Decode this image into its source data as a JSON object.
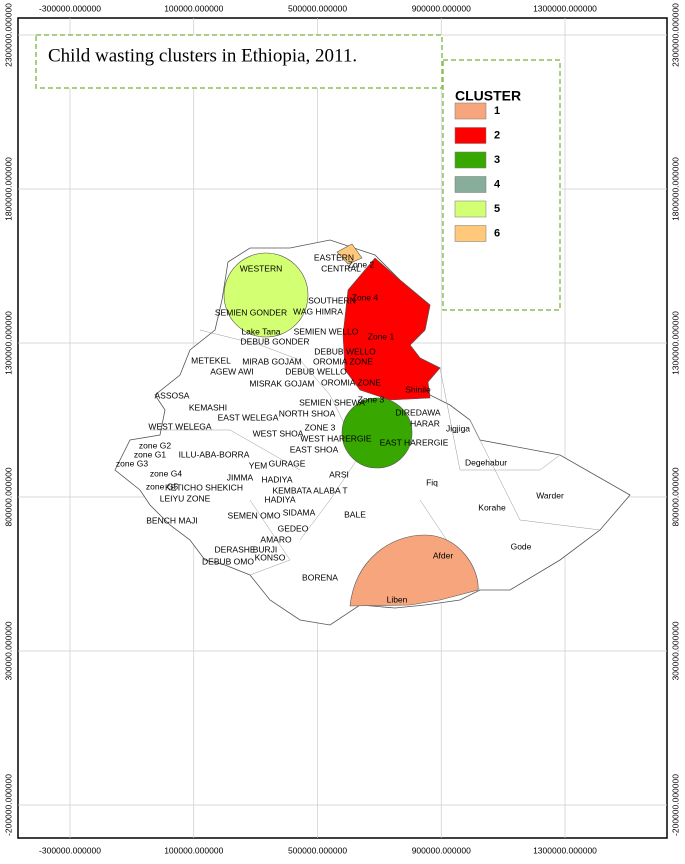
{
  "title": "Child wasting clusters in Ethiopia, 2011.",
  "legend": {
    "title": "CLUSTER",
    "items": [
      {
        "label": "1",
        "color": "#f7a57d"
      },
      {
        "label": "2",
        "color": "#ff0000"
      },
      {
        "label": "3",
        "color": "#38a800"
      },
      {
        "label": "4",
        "color": "#89ad9b"
      },
      {
        "label": "5",
        "color": "#d3ff73"
      },
      {
        "label": "6",
        "color": "#ffc87a"
      }
    ]
  },
  "axes": {
    "xticks": [
      {
        "value": -300000,
        "label": "-300000.000000"
      },
      {
        "value": 100000,
        "label": "100000.000000"
      },
      {
        "value": 500000,
        "label": "500000.000000"
      },
      {
        "value": 900000,
        "label": "900000.000000"
      },
      {
        "value": 1300000,
        "label": "1300000.000000"
      }
    ],
    "yticks": [
      {
        "value": 2300000,
        "label": "2300000.000000"
      },
      {
        "value": 1800000,
        "label": "1800000.000000"
      },
      {
        "value": 1300000,
        "label": "1300000.000000"
      },
      {
        "value": 800000,
        "label": "800000.000000"
      },
      {
        "value": 300000,
        "label": "300000.000000"
      },
      {
        "value": -200000,
        "label": "-200000.000000"
      }
    ]
  },
  "regions": [
    "EASTERN",
    "Zone 2",
    "WESTERN",
    "CENTRAL",
    "Zone 4",
    "SOUTHERN",
    "WAG HIMRA",
    "SEMIEN GONDER",
    "Lake Tana",
    "SEMIEN WELLO",
    "Zone 1",
    "DEBUB GONDER",
    "DEBUB WELLO",
    "METEKEL",
    "MIRAB GOJAM",
    "OROMIA ZONE",
    "AGEW AWI",
    "DEBUB WELLO",
    "OROMIA ZONE",
    "MISRAK GOJAM",
    "Shinile",
    "ASSOSA",
    "Zone 3",
    "SEMIEN SHEWA",
    "KEMASHI",
    "DIREDAWA",
    "NORTH SHOA",
    "EAST WELEGA",
    "HARAR",
    "WEST WELEGA",
    "ZONE 3",
    "WEST SHOA",
    "Jigjiga",
    "WEST HARERGIE",
    "EAST HARERGIE",
    "zone G2",
    "EAST SHOA",
    "zone G1",
    "ILLU-ABA-BORRA",
    "zone G3",
    "Degehabur",
    "YEM",
    "GURAGE",
    "ARSI",
    "JIMMA",
    "HADIYA",
    "zone G4",
    "Fiq",
    "zone G5",
    "KEMBATA ALABA T",
    "Warder",
    "KETICHO SHEKICH",
    "LEIYU ZONE",
    "HADIYA",
    "BENCH MAJI",
    "Korahe",
    "SIDAMA",
    "BALE",
    "SEMEN OMO",
    "GEDEO",
    "Afder",
    "Gode",
    "AMARO",
    "DERASHE",
    "BURJI",
    "KONSO",
    "DEBUB OMO",
    "BORENA",
    "Liben"
  ]
}
